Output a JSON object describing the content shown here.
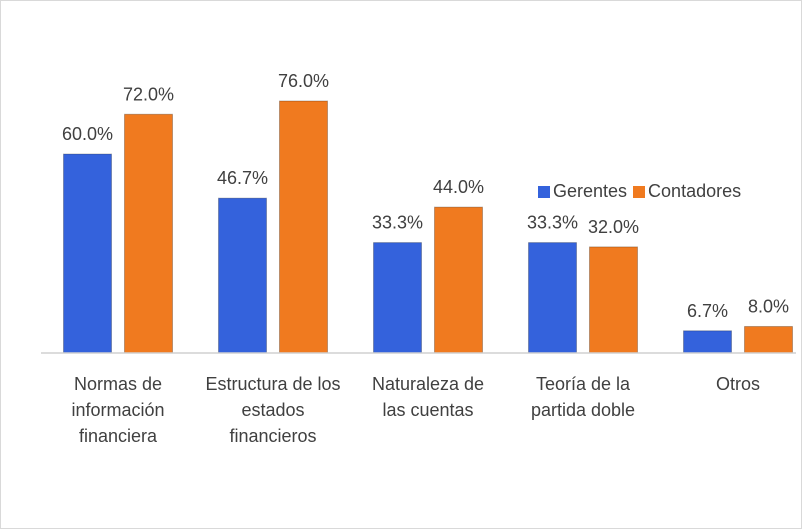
{
  "chart_data": {
    "type": "bar",
    "categories": [
      "Normas de información financiera",
      "Estructura de los estados financieros",
      "Naturaleza de las cuentas",
      "Teoría de la partida doble",
      "Otros"
    ],
    "series": [
      {
        "name": "Gerentes",
        "color": "#3462dc",
        "values": [
          60.0,
          46.7,
          33.3,
          33.3,
          6.7
        ],
        "value_labels": [
          "60.0%",
          "46.7%",
          "33.3%",
          "33.3%",
          "6.7%"
        ]
      },
      {
        "name": "Contadores",
        "color": "#f07a1f",
        "values": [
          72.0,
          76.0,
          44.0,
          32.0,
          8.0
        ],
        "value_labels": [
          "72.0%",
          "76.0%",
          "44.0%",
          "32.0%",
          "8.0%"
        ]
      }
    ],
    "legend": "right"
  }
}
